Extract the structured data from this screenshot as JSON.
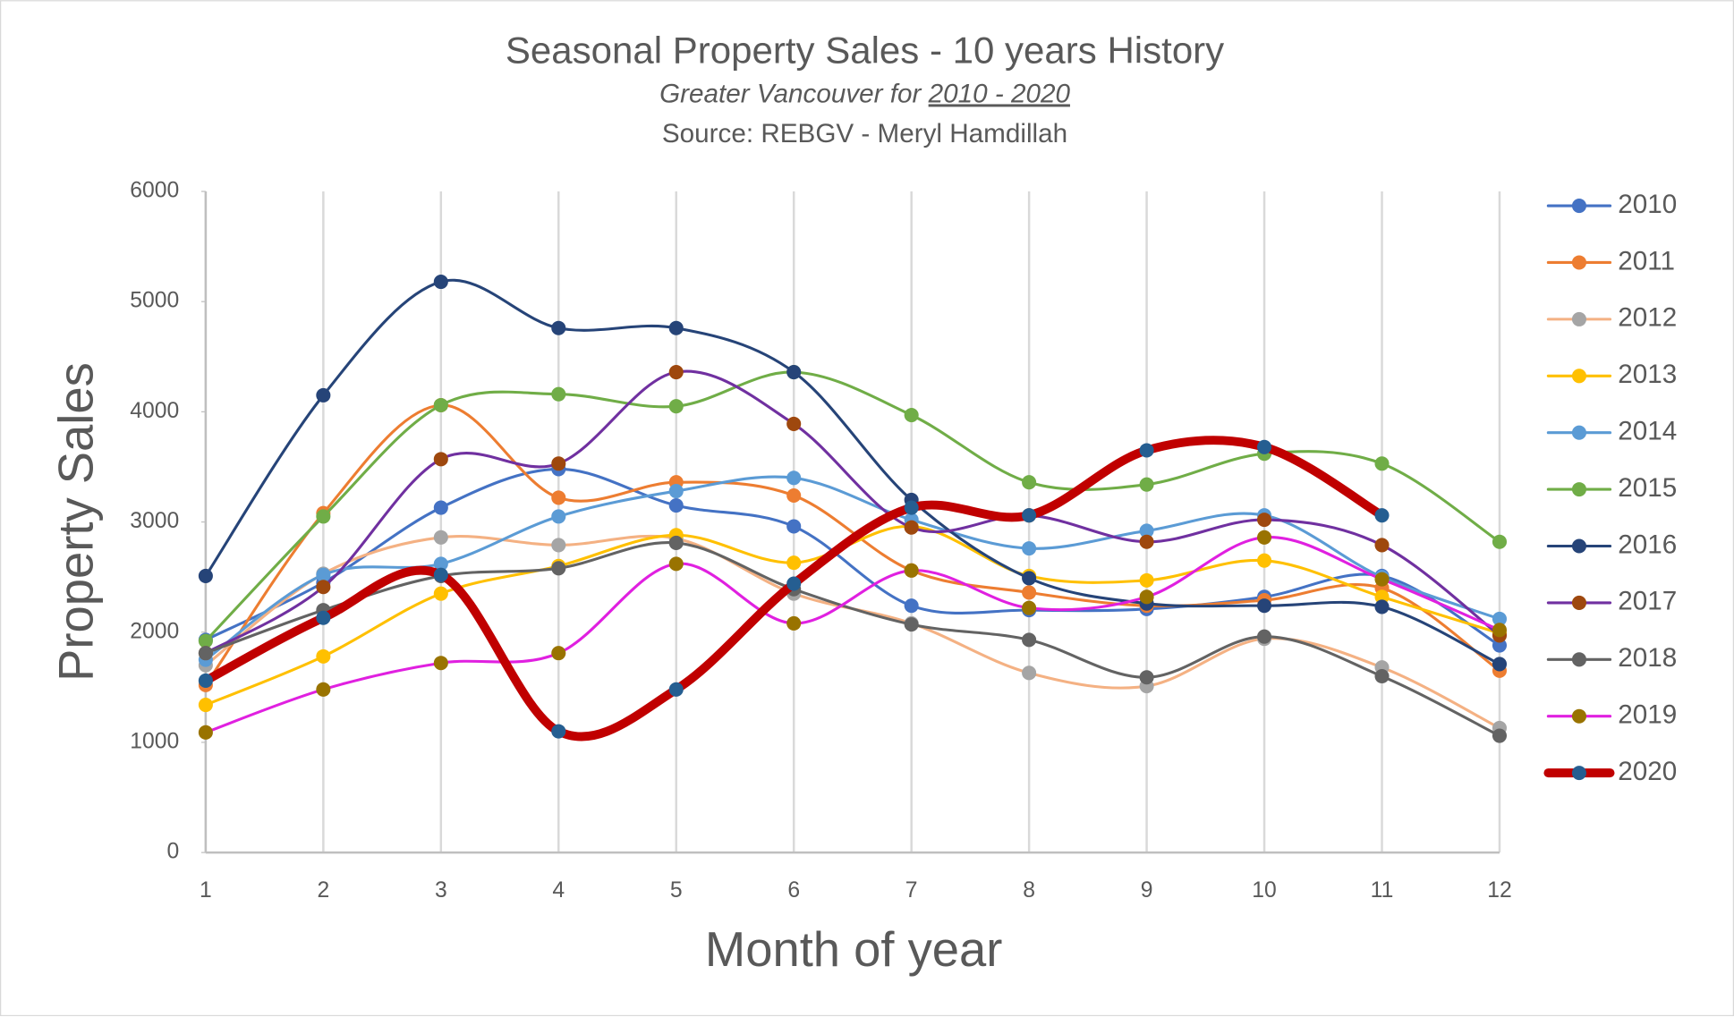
{
  "chart_data": {
    "type": "line",
    "title": "Seasonal Property Sales - 10 years History",
    "subtitle": "Greater Vancouver for ",
    "subtitle_years": "2010 - 2020",
    "source": "Source: REBGV  - Meryl Hamdillah",
    "x_label": "Month of year",
    "y_label": "Property Sales",
    "x": [
      1,
      2,
      3,
      4,
      5,
      6,
      7,
      8,
      9,
      10,
      11,
      12
    ],
    "xlim": [
      1,
      12
    ],
    "xticks": [
      1,
      2,
      3,
      4,
      5,
      6,
      7,
      8,
      9,
      10,
      11,
      12
    ],
    "ylim": [
      0,
      6000
    ],
    "yticks": [
      0,
      1000,
      2000,
      3000,
      4000,
      5000,
      6000
    ],
    "grid": "x",
    "smooth": true,
    "legend": "right",
    "series": [
      {
        "name": "2010",
        "color": "#4472c4",
        "marker_color": "#4472c4",
        "values": [
          1930,
          2450,
          3130,
          3480,
          3150,
          2960,
          2240,
          2200,
          2210,
          2320,
          2510,
          1880
        ]
      },
      {
        "name": "2011",
        "color": "#ed7d31",
        "marker_color": "#ed7d31",
        "values": [
          1520,
          3080,
          4060,
          3220,
          3360,
          3240,
          2560,
          2360,
          2240,
          2290,
          2400,
          1650
        ]
      },
      {
        "name": "2012",
        "color": "#f4b183",
        "marker_color": "#a5a5a5",
        "values": [
          1700,
          2530,
          2860,
          2790,
          2850,
          2350,
          2080,
          1630,
          1510,
          1940,
          1680,
          1130
        ]
      },
      {
        "name": "2013",
        "color": "#ffc000",
        "marker_color": "#ffc000",
        "values": [
          1340,
          1780,
          2350,
          2600,
          2880,
          2630,
          2960,
          2510,
          2470,
          2650,
          2320,
          1990
        ]
      },
      {
        "name": "2014",
        "color": "#5b9bd5",
        "marker_color": "#5b9bd5",
        "values": [
          1750,
          2520,
          2620,
          3050,
          3280,
          3400,
          3020,
          2760,
          2920,
          3060,
          2500,
          2120
        ]
      },
      {
        "name": "2015",
        "color": "#70ad47",
        "marker_color": "#70ad47",
        "values": [
          1920,
          3050,
          4060,
          4160,
          4050,
          4360,
          3970,
          3360,
          3340,
          3620,
          3530,
          2820
        ]
      },
      {
        "name": "2016",
        "color": "#264478",
        "marker_color": "#264478",
        "values": [
          2510,
          4150,
          5180,
          4760,
          4760,
          4360,
          3200,
          2490,
          2260,
          2240,
          2230,
          1710
        ]
      },
      {
        "name": "2017",
        "color": "#7030a0",
        "marker_color": "#9e480e",
        "values": [
          1810,
          2410,
          3570,
          3530,
          4360,
          3890,
          2950,
          3060,
          2820,
          3020,
          2790,
          1970
        ]
      },
      {
        "name": "2018",
        "color": "#636363",
        "marker_color": "#636363",
        "values": [
          1810,
          2200,
          2510,
          2580,
          2810,
          2390,
          2070,
          1930,
          1590,
          1960,
          1600,
          1060
        ]
      },
      {
        "name": "2019",
        "color": "#e020e0",
        "marker_color": "#997300",
        "values": [
          1090,
          1480,
          1720,
          1810,
          2620,
          2080,
          2560,
          2220,
          2320,
          2860,
          2480,
          2020
        ]
      },
      {
        "name": "2020",
        "color": "#c00000",
        "marker_color": "#255e91",
        "width": 8,
        "values": [
          1560,
          2130,
          2520,
          1100,
          1480,
          2440,
          3130,
          3060,
          3650,
          3680,
          3060,
          null
        ]
      }
    ]
  }
}
